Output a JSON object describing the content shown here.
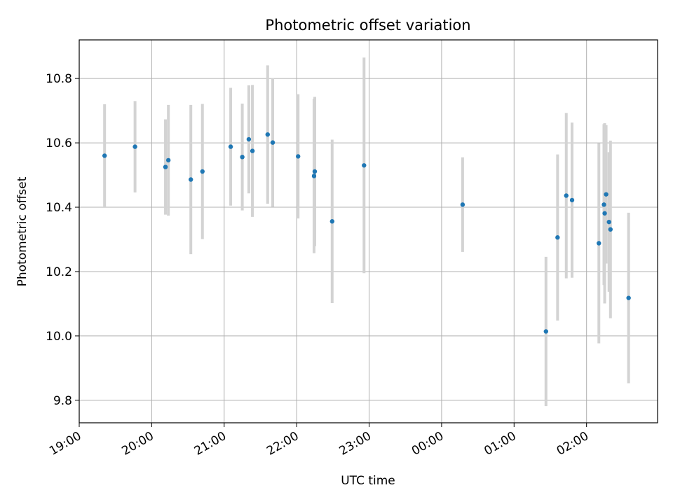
{
  "chart_data": {
    "type": "scatter",
    "title": "Photometric offset variation",
    "xlabel": "UTC time",
    "ylabel": "Photometric offset",
    "x_ticks": [
      "19:00",
      "20:00",
      "21:00",
      "22:00",
      "23:00",
      "00:00",
      "01:00",
      "02:00"
    ],
    "y_ticks": [
      "9.8",
      "10.0",
      "10.2",
      "10.4",
      "10.6",
      "10.8"
    ],
    "x_unit": "hours since 19:00 UTC",
    "xlim": [
      0,
      7.98
    ],
    "ylim": [
      9.73,
      10.92
    ],
    "grid": true,
    "colors": {
      "point": "#1f77b4",
      "errorbar": "#d3d3d3",
      "grid": "#b0b0b0"
    },
    "series": [
      {
        "points": [
          {
            "x": 0.35,
            "y": 10.56,
            "err": 0.16
          },
          {
            "x": 0.77,
            "y": 10.588,
            "err": 0.142
          },
          {
            "x": 1.19,
            "y": 10.525,
            "err": 0.148
          },
          {
            "x": 1.23,
            "y": 10.546,
            "err": 0.172
          },
          {
            "x": 1.54,
            "y": 10.486,
            "err": 0.232
          },
          {
            "x": 1.7,
            "y": 10.511,
            "err": 0.21
          },
          {
            "x": 2.09,
            "y": 10.588,
            "err": 0.183
          },
          {
            "x": 2.25,
            "y": 10.556,
            "err": 0.166
          },
          {
            "x": 2.34,
            "y": 10.611,
            "err": 0.168
          },
          {
            "x": 2.39,
            "y": 10.575,
            "err": 0.205
          },
          {
            "x": 2.6,
            "y": 10.626,
            "err": 0.215
          },
          {
            "x": 2.67,
            "y": 10.601,
            "err": 0.2
          },
          {
            "x": 3.02,
            "y": 10.558,
            "err": 0.193
          },
          {
            "x": 3.24,
            "y": 10.497,
            "err": 0.24
          },
          {
            "x": 3.25,
            "y": 10.511,
            "err": 0.232
          },
          {
            "x": 3.49,
            "y": 10.356,
            "err": 0.254
          },
          {
            "x": 3.93,
            "y": 10.53,
            "err": 0.335
          },
          {
            "x": 5.29,
            "y": 10.408,
            "err": 0.147
          },
          {
            "x": 6.44,
            "y": 10.014,
            "err": 0.232
          },
          {
            "x": 6.6,
            "y": 10.306,
            "err": 0.258
          },
          {
            "x": 6.72,
            "y": 10.436,
            "err": 0.257
          },
          {
            "x": 6.8,
            "y": 10.422,
            "err": 0.241
          },
          {
            "x": 7.17,
            "y": 10.288,
            "err": 0.311
          },
          {
            "x": 7.24,
            "y": 10.408,
            "err": 0.25
          },
          {
            "x": 7.25,
            "y": 10.381,
            "err": 0.28
          },
          {
            "x": 7.27,
            "y": 10.44,
            "err": 0.215
          },
          {
            "x": 7.31,
            "y": 10.354,
            "err": 0.217
          },
          {
            "x": 7.33,
            "y": 10.331,
            "err": 0.276
          },
          {
            "x": 7.58,
            "y": 10.118,
            "err": 0.265
          }
        ]
      }
    ]
  }
}
